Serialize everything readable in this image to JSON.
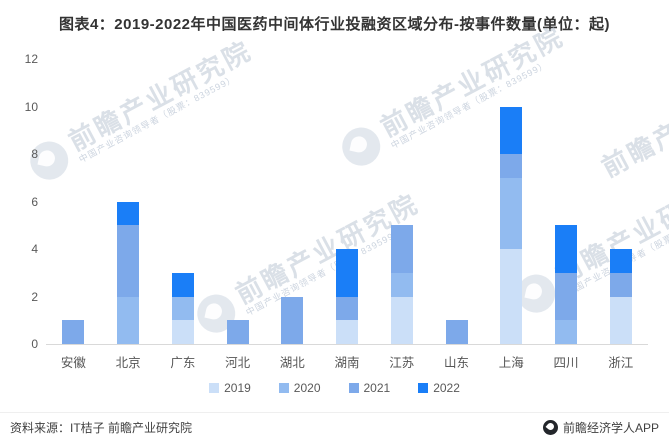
{
  "header": {
    "title": "图表4：2019-2022年中国医药中间体行业投融资区域分布-按事件数量(单位：起)"
  },
  "chart_data": {
    "type": "bar",
    "stacked": true,
    "title": "图表4：2019-2022年中国医药中间体行业投融资区域分布-按事件数量(单位：起)",
    "unit": "起",
    "xlabel": "",
    "ylabel": "",
    "ylim": [
      0,
      12
    ],
    "yticks": [
      0,
      2,
      4,
      6,
      8,
      10,
      12
    ],
    "grid": false,
    "legend_position": "bottom",
    "categories": [
      "安徽",
      "北京",
      "广东",
      "河北",
      "湖北",
      "湖南",
      "江苏",
      "山东",
      "上海",
      "四川",
      "浙江"
    ],
    "series": [
      {
        "name": "2019",
        "color": "#cbdff8",
        "values": [
          0,
          0,
          1,
          0,
          0,
          1,
          2,
          0,
          4,
          0,
          2
        ]
      },
      {
        "name": "2020",
        "color": "#92bbf0",
        "values": [
          0,
          2,
          1,
          0,
          0,
          0,
          1,
          0,
          3,
          1,
          0
        ]
      },
      {
        "name": "2021",
        "color": "#7da9ea",
        "values": [
          1,
          3,
          0,
          1,
          2,
          1,
          2,
          1,
          1,
          2,
          1
        ]
      },
      {
        "name": "2022",
        "color": "#1a7ef7",
        "values": [
          0,
          1,
          1,
          0,
          0,
          2,
          0,
          0,
          2,
          2,
          1
        ]
      }
    ],
    "totals": [
      1,
      6,
      3,
      1,
      2,
      4,
      5,
      1,
      10,
      5,
      4
    ]
  },
  "watermark": {
    "brand": "前瞻产业研究院",
    "tagline": "中国产业咨询领导者（股票：839599）"
  },
  "footer": {
    "source": "资料来源：IT桔子 前瞻产业研究院",
    "app": "前瞻经济学人APP"
  },
  "colors": {
    "axis_line": "#d9d9d9",
    "tick_text": "#595959",
    "title_text": "#333333"
  }
}
